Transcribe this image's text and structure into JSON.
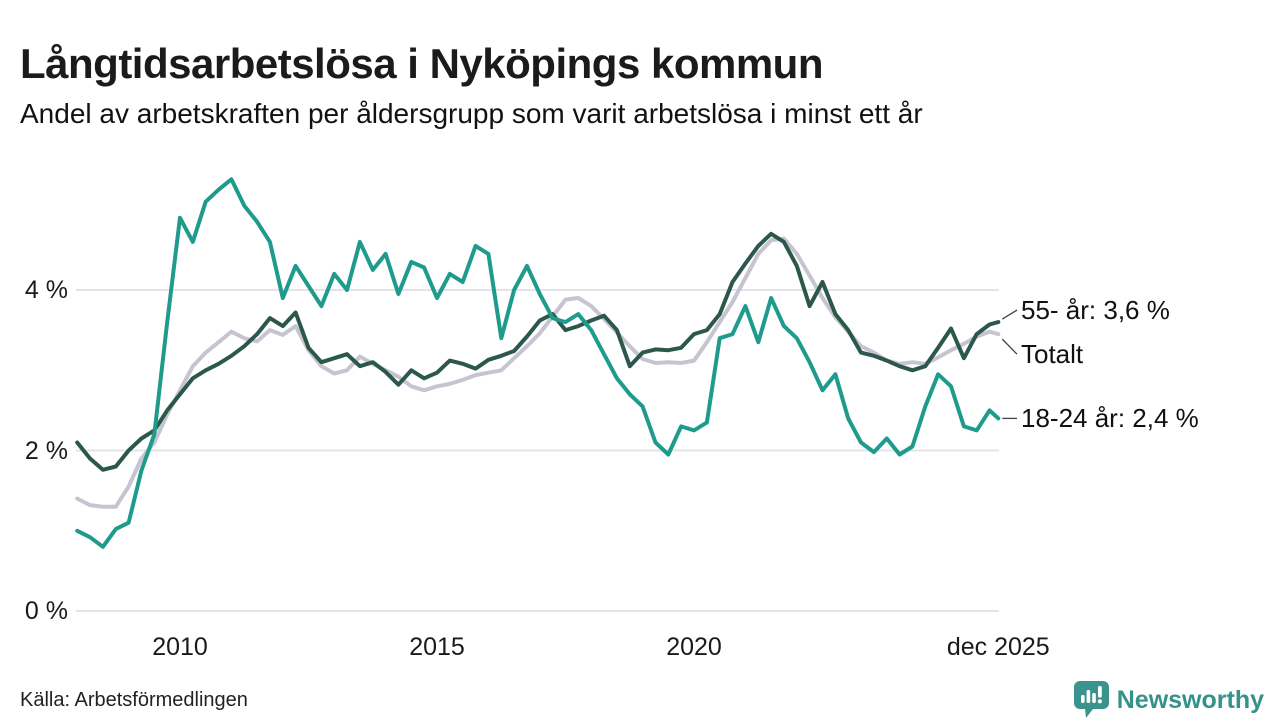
{
  "header": {
    "title": "Långtidsarbetslösa i Nyköpings kommun",
    "subtitle": "Andel av arbetskraften per åldersgrupp som varit arbetslösa i minst ett år"
  },
  "footer": {
    "source": "Källa: Arbetsförmedlingen",
    "brand": "Newsworthy"
  },
  "colors": {
    "series_totalt": "#c7c4d2",
    "series_55": "#2b584b",
    "series_18_24": "#1e9b8c",
    "gridline": "#e4e4e8",
    "connector": "#444444",
    "text": "#1a1a1a",
    "brand_teal": "#3a948d"
  },
  "chart_data": {
    "type": "line",
    "title": "Långtidsarbetslösa i Nyköpings kommun",
    "subtitle": "Andel av arbetskraften per åldersgrupp som varit arbetslösa i minst ett år",
    "unit": "%",
    "grid": "horizontal",
    "legend_position": "end-of-line-labels",
    "ylim": [
      0,
      5.6
    ],
    "y_axis": {
      "ticks": [
        {
          "value": 0,
          "label": "0 %"
        },
        {
          "value": 2,
          "label": "2 %"
        },
        {
          "value": 4,
          "label": "4 %"
        }
      ]
    },
    "x_axis": {
      "start": 2008.0,
      "end": 2025.92,
      "ticks": [
        {
          "value": 2010,
          "label": "2010"
        },
        {
          "value": 2015,
          "label": "2015"
        },
        {
          "value": 2020,
          "label": "2020"
        },
        {
          "value": 2025.92,
          "label": "dec 2025"
        }
      ]
    },
    "x": [
      2008.0,
      2008.25,
      2008.5,
      2008.75,
      2009.0,
      2009.25,
      2009.5,
      2009.75,
      2010.0,
      2010.25,
      2010.5,
      2010.75,
      2011.0,
      2011.25,
      2011.5,
      2011.75,
      2012.0,
      2012.25,
      2012.5,
      2012.75,
      2013.0,
      2013.25,
      2013.5,
      2013.75,
      2014.0,
      2014.25,
      2014.5,
      2014.75,
      2015.0,
      2015.25,
      2015.5,
      2015.75,
      2016.0,
      2016.25,
      2016.5,
      2016.75,
      2017.0,
      2017.25,
      2017.5,
      2017.75,
      2018.0,
      2018.25,
      2018.5,
      2018.75,
      2019.0,
      2019.25,
      2019.5,
      2019.75,
      2020.0,
      2020.25,
      2020.5,
      2020.75,
      2021.0,
      2021.25,
      2021.5,
      2021.75,
      2022.0,
      2022.25,
      2022.5,
      2022.75,
      2023.0,
      2023.25,
      2023.5,
      2023.75,
      2024.0,
      2024.25,
      2024.5,
      2024.75,
      2025.0,
      2025.25,
      2025.5,
      2025.75,
      2025.92
    ],
    "series": [
      {
        "name": "Totalt",
        "end_label": "Totalt",
        "end_value_text": "Totalt",
        "color_key": "series_totalt",
        "values": [
          1.4,
          1.32,
          1.3,
          1.3,
          1.55,
          1.9,
          2.1,
          2.45,
          2.75,
          3.05,
          3.22,
          3.35,
          3.48,
          3.4,
          3.36,
          3.5,
          3.44,
          3.55,
          3.25,
          3.05,
          2.96,
          3.0,
          3.17,
          3.08,
          3.0,
          2.92,
          2.8,
          2.75,
          2.8,
          2.83,
          2.88,
          2.94,
          2.97,
          3.0,
          3.15,
          3.3,
          3.46,
          3.67,
          3.88,
          3.9,
          3.8,
          3.64,
          3.47,
          3.3,
          3.14,
          3.09,
          3.1,
          3.09,
          3.12,
          3.35,
          3.6,
          3.85,
          4.15,
          4.45,
          4.62,
          4.64,
          4.45,
          4.18,
          3.9,
          3.66,
          3.48,
          3.3,
          3.22,
          3.12,
          3.08,
          3.1,
          3.08,
          3.16,
          3.25,
          3.33,
          3.42,
          3.48,
          3.45
        ]
      },
      {
        "name": "55- år",
        "end_label": "55- år: 3,6 %",
        "end_value_text": "3,6 %",
        "color_key": "series_55",
        "values": [
          2.1,
          1.9,
          1.76,
          1.8,
          2.0,
          2.15,
          2.25,
          2.5,
          2.7,
          2.9,
          3.0,
          3.08,
          3.18,
          3.3,
          3.45,
          3.65,
          3.55,
          3.72,
          3.28,
          3.1,
          3.15,
          3.2,
          3.05,
          3.1,
          2.98,
          2.82,
          3.0,
          2.9,
          2.97,
          3.12,
          3.08,
          3.02,
          3.13,
          3.18,
          3.24,
          3.42,
          3.62,
          3.7,
          3.5,
          3.55,
          3.62,
          3.68,
          3.5,
          3.05,
          3.22,
          3.26,
          3.25,
          3.28,
          3.45,
          3.5,
          3.7,
          4.1,
          4.33,
          4.55,
          4.7,
          4.6,
          4.3,
          3.8,
          4.1,
          3.7,
          3.5,
          3.22,
          3.18,
          3.12,
          3.05,
          3.0,
          3.05,
          3.28,
          3.52,
          3.15,
          3.45,
          3.57,
          3.6
        ]
      },
      {
        "name": "18-24 år",
        "end_label": "18-24 år: 2,4 %",
        "end_value_text": "2,4 %",
        "color_key": "series_18_24",
        "values": [
          1.0,
          0.92,
          0.8,
          1.02,
          1.1,
          1.75,
          2.2,
          3.6,
          4.9,
          4.6,
          5.1,
          5.25,
          5.38,
          5.05,
          4.85,
          4.6,
          3.9,
          4.3,
          4.05,
          3.8,
          4.2,
          4.0,
          4.6,
          4.25,
          4.45,
          3.95,
          4.35,
          4.28,
          3.9,
          4.2,
          4.1,
          4.55,
          4.45,
          3.4,
          4.0,
          4.3,
          3.95,
          3.65,
          3.6,
          3.7,
          3.5,
          3.2,
          2.9,
          2.7,
          2.55,
          2.1,
          1.95,
          2.3,
          2.25,
          2.35,
          3.4,
          3.45,
          3.8,
          3.35,
          3.9,
          3.55,
          3.4,
          3.1,
          2.75,
          2.95,
          2.4,
          2.1,
          1.98,
          2.15,
          1.95,
          2.05,
          2.55,
          2.95,
          2.8,
          2.3,
          2.25,
          2.5,
          2.4
        ]
      }
    ]
  }
}
